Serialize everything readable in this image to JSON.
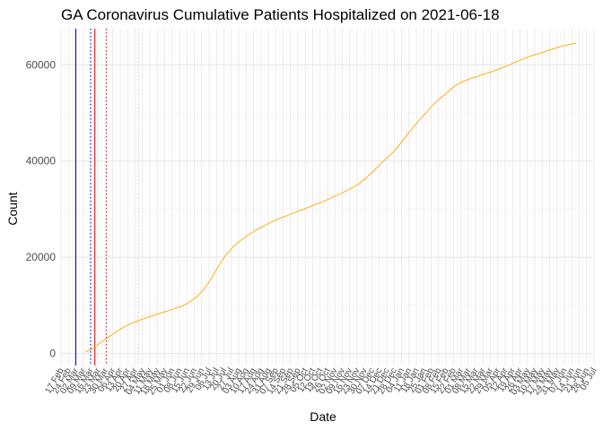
{
  "chart_data": {
    "type": "line",
    "title": "GA Coronavirus Cumulative Patients Hospitalized on 2021-06-18",
    "xlabel": "Date",
    "ylabel": "Count",
    "xlim": [
      "2020-02-17",
      "2021-07-05"
    ],
    "ylim": [
      -2500,
      67500
    ],
    "y_ticks": [
      0,
      20000,
      40000,
      60000
    ],
    "x_tick_dates": [
      "2020-02-17",
      "2020-02-24",
      "2020-03-02",
      "2020-03-09",
      "2020-03-16",
      "2020-03-23",
      "2020-03-30",
      "2020-04-06",
      "2020-04-13",
      "2020-04-20",
      "2020-04-27",
      "2020-05-04",
      "2020-05-11",
      "2020-05-18",
      "2020-05-25",
      "2020-06-01",
      "2020-06-08",
      "2020-06-15",
      "2020-06-22",
      "2020-06-29",
      "2020-07-06",
      "2020-07-13",
      "2020-07-20",
      "2020-07-27",
      "2020-08-03",
      "2020-08-10",
      "2020-08-17",
      "2020-08-24",
      "2020-08-31",
      "2020-09-07",
      "2020-09-14",
      "2020-09-21",
      "2020-09-28",
      "2020-10-05",
      "2020-10-12",
      "2020-10-19",
      "2020-10-26",
      "2020-11-02",
      "2020-11-09",
      "2020-11-16",
      "2020-11-23",
      "2020-11-30",
      "2020-12-07",
      "2020-12-14",
      "2020-12-21",
      "2020-12-28",
      "2021-01-04",
      "2021-01-11",
      "2021-01-18",
      "2021-01-25",
      "2021-02-01",
      "2021-02-08",
      "2021-02-15",
      "2021-02-22",
      "2021-03-01",
      "2021-03-08",
      "2021-03-15",
      "2021-03-22",
      "2021-03-29",
      "2021-04-05",
      "2021-04-12",
      "2021-04-19",
      "2021-04-26",
      "2021-05-03",
      "2021-05-10",
      "2021-05-17",
      "2021-05-24",
      "2021-05-31",
      "2021-06-07",
      "2021-06-14",
      "2021-06-21",
      "2021-06-28",
      "2021-07-05"
    ],
    "x_tick_labels": [
      "17 Feb",
      "24 Feb",
      "02 Mar",
      "09 Mar",
      "16 Mar",
      "23 Mar",
      "30 Mar",
      "06 Apr",
      "13 Apr",
      "20 Apr",
      "27 Apr",
      "04 May",
      "11 May",
      "18 May",
      "25 May",
      "01 Jun",
      "08 Jun",
      "15 Jun",
      "22 Jun",
      "29 Jun",
      "06 Jul",
      "13 Jul",
      "20 Jul",
      "27 Jul",
      "03 Aug",
      "10 Aug",
      "17 Aug",
      "24 Aug",
      "31 Aug",
      "07 Sep",
      "14 Sep",
      "21 Sep",
      "28 Sep",
      "05 Oct",
      "12 Oct",
      "19 Oct",
      "26 Oct",
      "02 Nov",
      "09 Nov",
      "16 Nov",
      "23 Nov",
      "30 Nov",
      "07 Dec",
      "14 Dec",
      "21 Dec",
      "28 Dec",
      "04 Jan",
      "11 Jan",
      "18 Jan",
      "25 Jan",
      "01 Feb",
      "08 Feb",
      "15 Feb",
      "22 Feb",
      "01 Mar",
      "08 Mar",
      "15 Mar",
      "22 Mar",
      "29 Mar",
      "05 Apr",
      "12 Apr",
      "19 Apr",
      "26 Apr",
      "03 May",
      "10 May",
      "17 May",
      "24 May",
      "31 May",
      "07 Jun",
      "14 Jun",
      "21 Jun",
      "28 Jun",
      "05 Jul"
    ],
    "vertical_lines": [
      {
        "date": "2020-03-02",
        "color": "#0000ff",
        "style": "solid"
      },
      {
        "date": "2020-03-16",
        "color": "#0000ff",
        "style": "dotted"
      },
      {
        "date": "2020-03-20",
        "color": "#ff0000",
        "style": "solid"
      },
      {
        "date": "2020-03-31",
        "color": "#ff0000",
        "style": "dotted"
      },
      {
        "date": "2020-04-30",
        "color": "#ffb6c1",
        "style": "dotted"
      }
    ],
    "series": [
      {
        "color": "#ffa500",
        "points": [
          [
            "2020-03-11",
            300
          ],
          [
            "2020-03-18",
            1000
          ],
          [
            "2020-03-25",
            2200
          ],
          [
            "2020-04-01",
            3300
          ],
          [
            "2020-04-08",
            4300
          ],
          [
            "2020-04-15",
            5300
          ],
          [
            "2020-04-22",
            6100
          ],
          [
            "2020-04-29",
            6700
          ],
          [
            "2020-05-06",
            7300
          ],
          [
            "2020-05-13",
            7800
          ],
          [
            "2020-05-20",
            8300
          ],
          [
            "2020-05-27",
            8800
          ],
          [
            "2020-06-03",
            9300
          ],
          [
            "2020-06-10",
            9800
          ],
          [
            "2020-06-17",
            10600
          ],
          [
            "2020-06-24",
            11700
          ],
          [
            "2020-07-01",
            13300
          ],
          [
            "2020-07-08",
            15500
          ],
          [
            "2020-07-15",
            18200
          ],
          [
            "2020-07-22",
            20500
          ],
          [
            "2020-07-29",
            22200
          ],
          [
            "2020-08-05",
            23500
          ],
          [
            "2020-08-12",
            24600
          ],
          [
            "2020-08-19",
            25600
          ],
          [
            "2020-08-26",
            26400
          ],
          [
            "2020-09-02",
            27200
          ],
          [
            "2020-09-09",
            27900
          ],
          [
            "2020-09-16",
            28500
          ],
          [
            "2020-09-23",
            29100
          ],
          [
            "2020-09-30",
            29700
          ],
          [
            "2020-10-07",
            30300
          ],
          [
            "2020-10-14",
            30900
          ],
          [
            "2020-10-21",
            31500
          ],
          [
            "2020-10-28",
            32200
          ],
          [
            "2020-11-04",
            32900
          ],
          [
            "2020-11-11",
            33600
          ],
          [
            "2020-11-18",
            34400
          ],
          [
            "2020-11-25",
            35300
          ],
          [
            "2020-12-02",
            36600
          ],
          [
            "2020-12-09",
            38000
          ],
          [
            "2020-12-16",
            39600
          ],
          [
            "2020-12-23",
            41000
          ],
          [
            "2020-12-30",
            42500
          ],
          [
            "2021-01-06",
            44500
          ],
          [
            "2021-01-13",
            46500
          ],
          [
            "2021-01-20",
            48300
          ],
          [
            "2021-01-27",
            50000
          ],
          [
            "2021-02-03",
            51700
          ],
          [
            "2021-02-10",
            53100
          ],
          [
            "2021-02-17",
            54400
          ],
          [
            "2021-02-24",
            55700
          ],
          [
            "2021-03-03",
            56500
          ],
          [
            "2021-03-10",
            57100
          ],
          [
            "2021-03-17",
            57600
          ],
          [
            "2021-03-24",
            58100
          ],
          [
            "2021-03-31",
            58600
          ],
          [
            "2021-04-07",
            59200
          ],
          [
            "2021-04-14",
            59800
          ],
          [
            "2021-04-21",
            60500
          ],
          [
            "2021-04-28",
            61100
          ],
          [
            "2021-05-05",
            61700
          ],
          [
            "2021-05-12",
            62200
          ],
          [
            "2021-05-19",
            62700
          ],
          [
            "2021-05-26",
            63200
          ],
          [
            "2021-06-02",
            63700
          ],
          [
            "2021-06-09",
            64100
          ],
          [
            "2021-06-16",
            64400
          ],
          [
            "2021-06-18",
            64500
          ]
        ]
      }
    ],
    "grid": true,
    "colors": {
      "series": "#ffa500",
      "grid_major": "#e5e5e5",
      "grid_minor": "#f2f2f2",
      "text": "#4d4d4d"
    }
  }
}
